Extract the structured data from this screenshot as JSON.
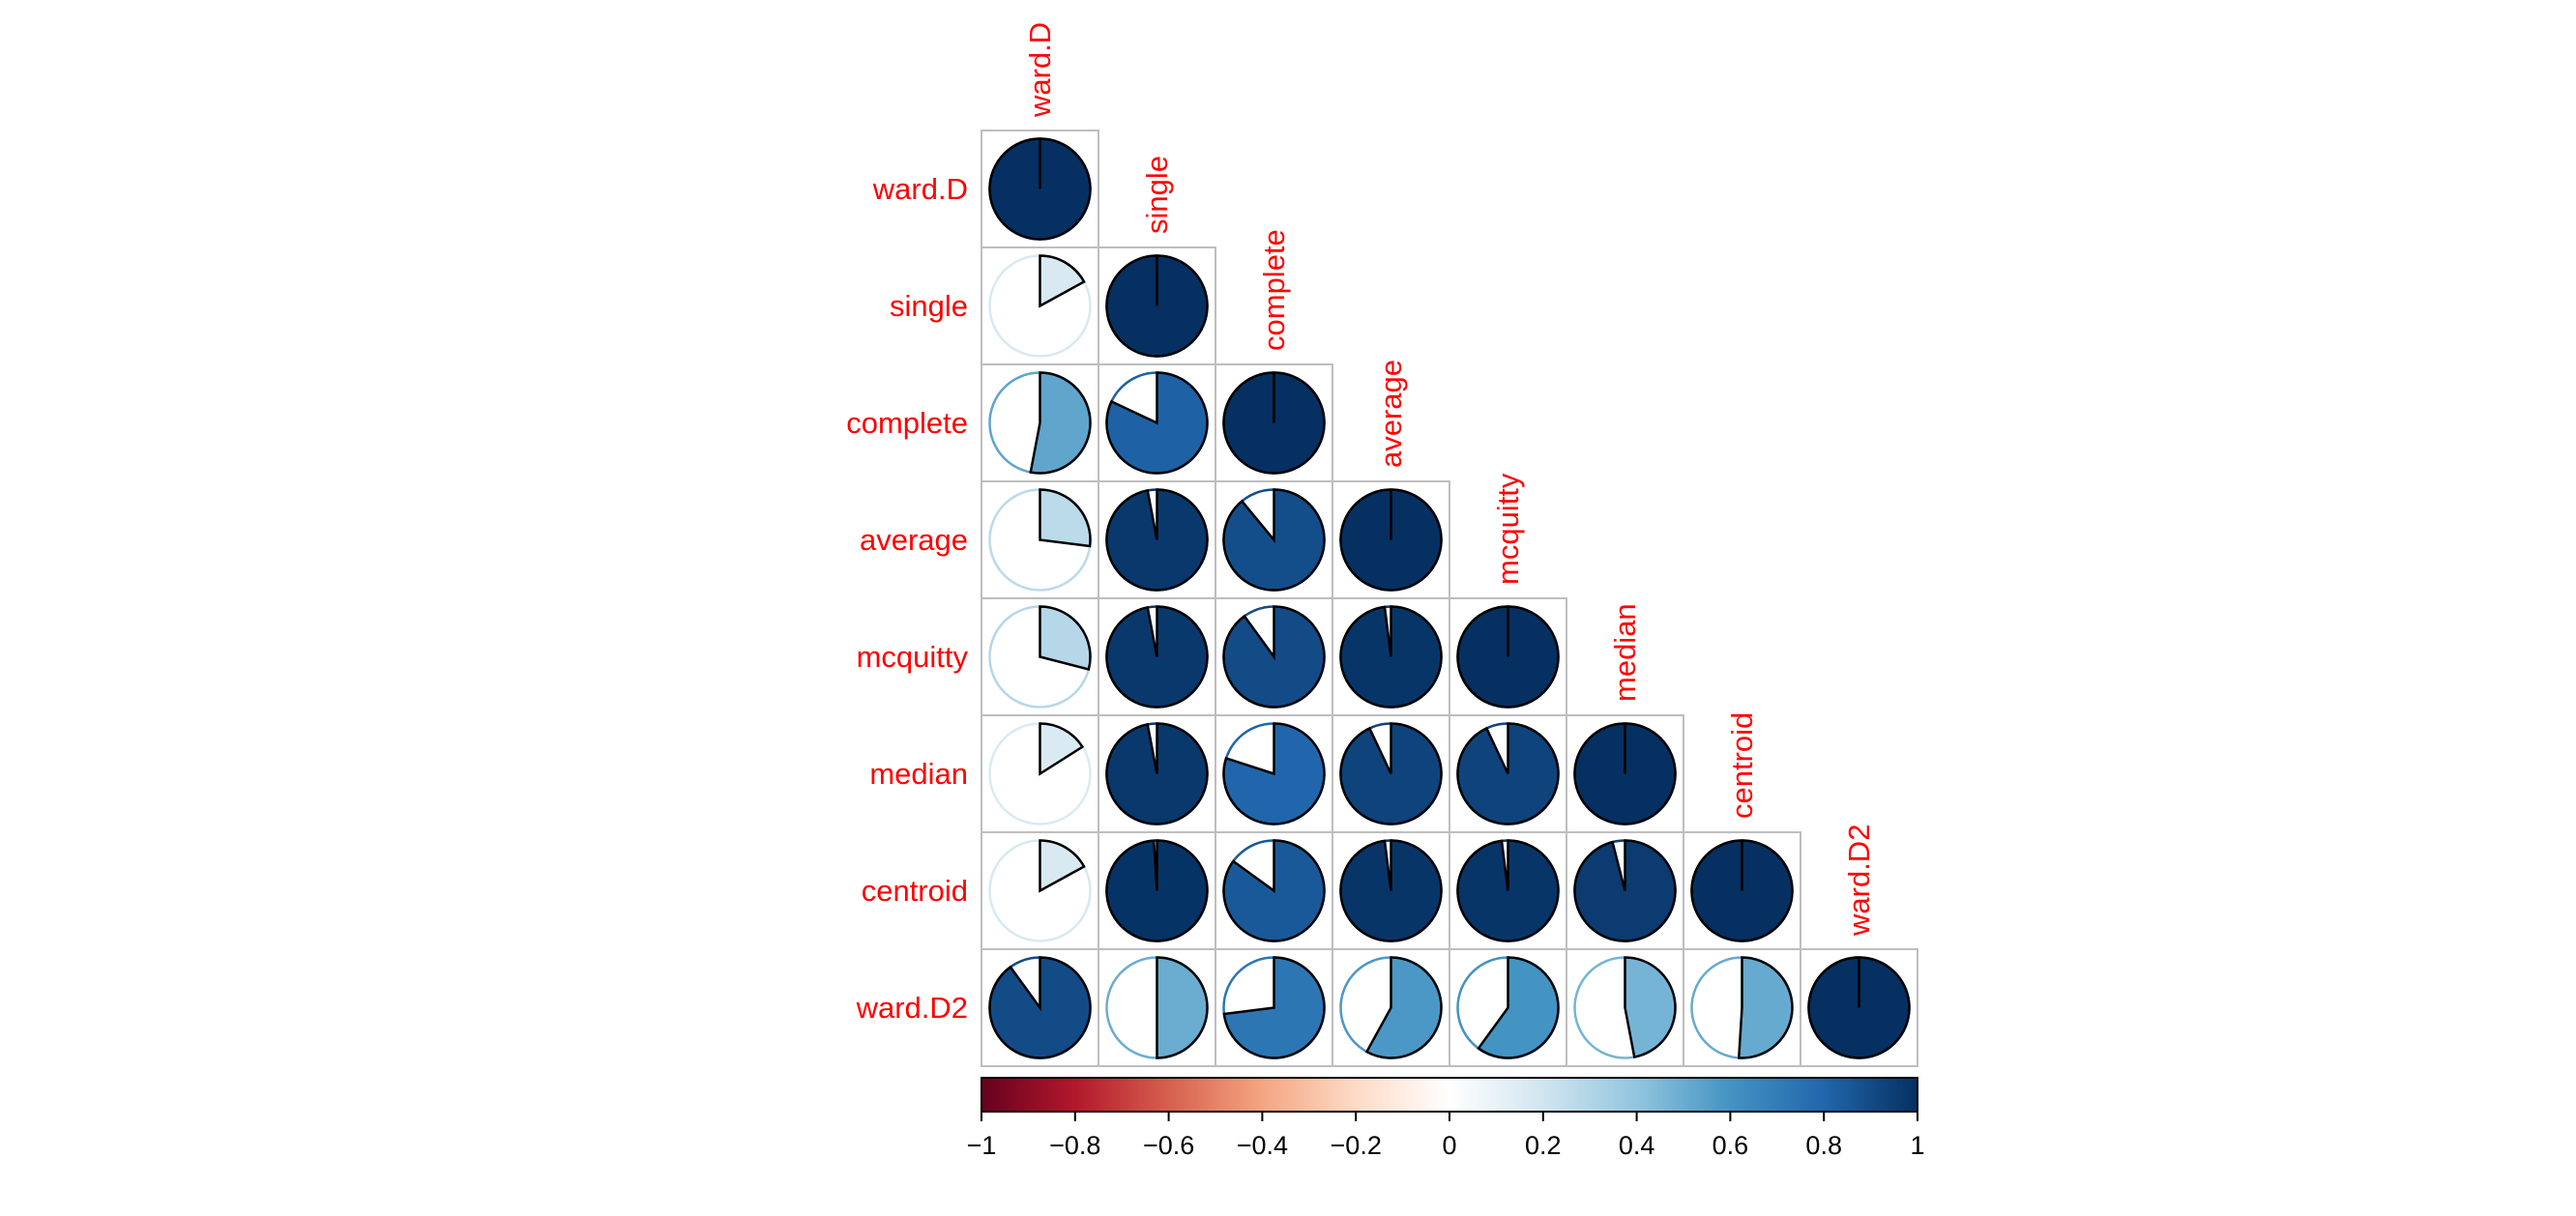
{
  "chart_data": {
    "type": "heatmap",
    "subtype": "correlation-pie-lower-triangle",
    "variables": [
      "ward.D",
      "single",
      "complete",
      "average",
      "mcquitty",
      "median",
      "centroid",
      "ward.D2"
    ],
    "matrix": [
      [
        1.0,
        0.17,
        0.53,
        0.27,
        0.29,
        0.16,
        0.17,
        0.9
      ],
      [
        0.17,
        1.0,
        0.82,
        0.97,
        0.97,
        0.97,
        0.99,
        0.5
      ],
      [
        0.53,
        0.82,
        1.0,
        0.89,
        0.9,
        0.8,
        0.85,
        0.73
      ],
      [
        0.27,
        0.97,
        0.89,
        1.0,
        0.98,
        0.93,
        0.98,
        0.58
      ],
      [
        0.29,
        0.97,
        0.9,
        0.98,
        1.0,
        0.93,
        0.98,
        0.6
      ],
      [
        0.16,
        0.97,
        0.8,
        0.93,
        0.93,
        1.0,
        0.96,
        0.47
      ],
      [
        0.17,
        0.99,
        0.85,
        0.98,
        0.98,
        0.96,
        1.0,
        0.51
      ],
      [
        0.9,
        0.5,
        0.73,
        0.58,
        0.6,
        0.47,
        0.51,
        1.0
      ]
    ],
    "colorbar": {
      "min": -1,
      "max": 1,
      "ticks": [
        -1,
        -0.8,
        -0.6,
        -0.4,
        -0.2,
        0,
        0.2,
        0.4,
        0.6,
        0.8,
        1
      ],
      "tick_labels": [
        "−1",
        "−0.8",
        "−0.6",
        "−0.4",
        "−0.2",
        "0",
        "0.2",
        "0.4",
        "0.6",
        "0.8",
        "1"
      ],
      "palette": [
        "#67001F",
        "#B2182B",
        "#D6604D",
        "#F4A582",
        "#FDDBC7",
        "#FFFFFF",
        "#D1E5F0",
        "#92C5DE",
        "#4393C3",
        "#2166AC",
        "#053061"
      ]
    },
    "label_color": "#ff0000",
    "grid_color": "#bebebe"
  }
}
